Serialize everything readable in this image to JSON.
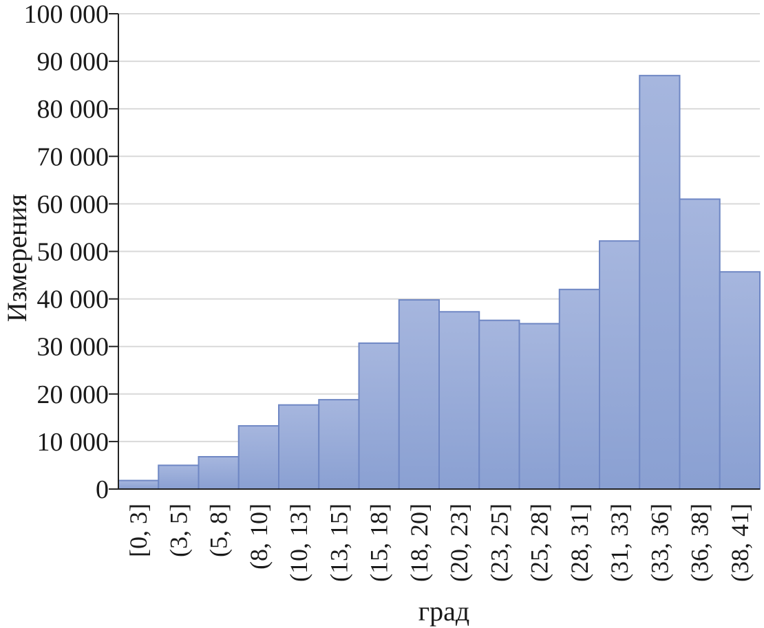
{
  "chart_data": {
    "type": "bar",
    "xlabel": "град",
    "ylabel": "Измерения",
    "ylim": [
      0,
      100000
    ],
    "yticks": [
      "0",
      "10 000",
      "20 000",
      "30 000",
      "40 000",
      "50 000",
      "60 000",
      "70 000",
      "80 000",
      "90 000",
      "100 000"
    ],
    "categories": [
      "[0, 3]",
      "(3, 5]",
      "(5, 8]",
      "(8, 10]",
      "(10, 13]",
      "(13, 15]",
      "(15, 18]",
      "(18, 20]",
      "(20, 23]",
      "(23, 25]",
      "(25, 28]",
      "(28, 31]",
      "(31, 33]",
      "(33, 36]",
      "(36, 38]",
      "(38, 41]"
    ],
    "values": [
      1800,
      5000,
      6800,
      13300,
      17700,
      18800,
      30700,
      39800,
      37300,
      35500,
      34800,
      42000,
      52200,
      87000,
      61000,
      45700
    ],
    "grid": true,
    "colors": {
      "bar_top": "#a6b6de",
      "bar_bottom": "#8aa0d2",
      "bar_edge": "#6f87c4"
    }
  }
}
